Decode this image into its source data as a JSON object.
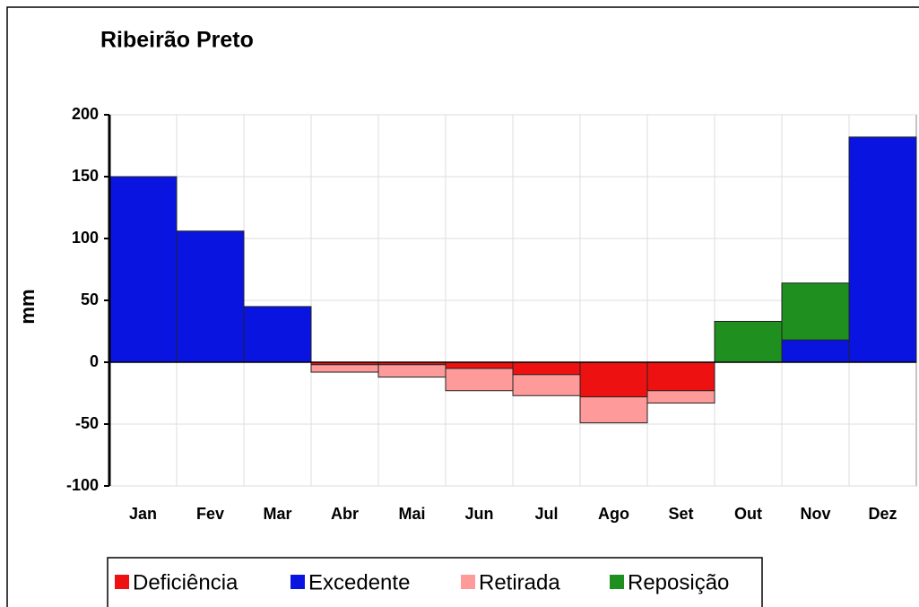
{
  "chart_data": {
    "type": "bar",
    "title": "Ribeirão Preto",
    "ylabel": "mm",
    "categories": [
      "Jan",
      "Fev",
      "Mar",
      "Abr",
      "Mai",
      "Jun",
      "Jul",
      "Ago",
      "Set",
      "Out",
      "Nov",
      "Dez"
    ],
    "series": [
      {
        "name": "Deficiência",
        "color": "#ee1111",
        "values": [
          0,
          0,
          0,
          -2,
          -2,
          -5,
          -10,
          -28,
          -23,
          0,
          0,
          0
        ]
      },
      {
        "name": "Excedente",
        "color": "#0a14e0",
        "values": [
          150,
          106,
          45,
          0,
          0,
          0,
          0,
          0,
          0,
          0,
          18,
          182
        ]
      },
      {
        "name": "Retirada",
        "color": "#ff9a9a",
        "values": [
          0,
          0,
          0,
          -8,
          -12,
          -23,
          -27,
          -49,
          -33,
          0,
          0,
          0
        ]
      },
      {
        "name": "Reposição",
        "color": "#1f8f1f",
        "values": [
          0,
          0,
          0,
          0,
          0,
          0,
          0,
          0,
          0,
          33,
          64,
          0
        ]
      }
    ],
    "ylim": [
      -100,
      200
    ],
    "yticks": [
      -100,
      -50,
      0,
      50,
      100,
      150,
      200
    ],
    "grid": true,
    "legend": "bottom"
  }
}
